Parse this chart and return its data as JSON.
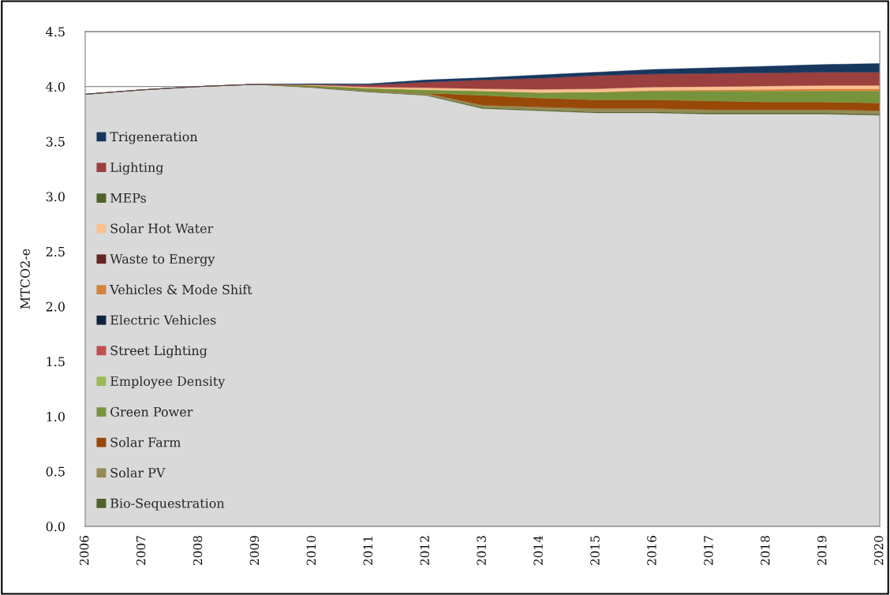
{
  "chart_data": {
    "type": "area",
    "stacked": true,
    "ylabel": "MTCO2-e",
    "x": [
      2006,
      2007,
      2008,
      2009,
      2010,
      2011,
      2012,
      2013,
      2014,
      2015,
      2016,
      2017,
      2018,
      2019,
      2020
    ],
    "xlim": [
      2006,
      2020
    ],
    "xticks": [
      2006,
      2007,
      2008,
      2009,
      2010,
      2011,
      2012,
      2013,
      2014,
      2015,
      2016,
      2017,
      2018,
      2019,
      2020
    ],
    "ylim": [
      0,
      4.5
    ],
    "yticks": [
      {
        "value": 0,
        "label": "0.0"
      },
      {
        "value": 0.5,
        "label": "0.5"
      },
      {
        "value": 1,
        "label": "1.0"
      },
      {
        "value": 1.5,
        "label": "1.5"
      },
      {
        "value": 2,
        "label": "2.0"
      },
      {
        "value": 2.5,
        "label": "2.5"
      },
      {
        "value": 3,
        "label": "3.0"
      },
      {
        "value": 3.5,
        "label": "3.5"
      },
      {
        "value": 4,
        "label": "4.0"
      },
      {
        "value": 4.5,
        "label": "4.5"
      }
    ],
    "grid": "y",
    "legend": "left",
    "series": [
      {
        "color": "#d9d9d9",
        "values": [
          3.93,
          3.97,
          4.0,
          4.02,
          3.99,
          3.95,
          3.92,
          3.8,
          3.78,
          3.76,
          3.76,
          3.75,
          3.75,
          3.75,
          3.74
        ]
      },
      {
        "name": "Bio-Sequestration",
        "color": "#4f6228",
        "values": [
          0,
          0,
          0,
          0,
          0.005,
          0.005,
          0.005,
          0.01,
          0.01,
          0.01,
          0.01,
          0.01,
          0.01,
          0.01,
          0.01
        ]
      },
      {
        "name": "Solar PV",
        "color": "#948a54",
        "values": [
          0,
          0,
          0,
          0,
          0.005,
          0.01,
          0.015,
          0.02,
          0.025,
          0.03,
          0.03,
          0.03,
          0.03,
          0.03,
          0.03
        ]
      },
      {
        "name": "Solar Farm",
        "color": "#984807",
        "values": [
          0,
          0,
          0,
          0,
          0,
          0,
          0,
          0.09,
          0.08,
          0.08,
          0.08,
          0.08,
          0.07,
          0.07,
          0.07
        ]
      },
      {
        "name": "Green Power",
        "color": "#77933c",
        "values": [
          0,
          0,
          0,
          0,
          0.01,
          0.02,
          0.03,
          0.04,
          0.05,
          0.07,
          0.08,
          0.09,
          0.1,
          0.1,
          0.11
        ]
      },
      {
        "name": "Employee Density",
        "color": "#9bbb59",
        "values": [
          null,
          null,
          null,
          null,
          null,
          null,
          null,
          null,
          null,
          null,
          null,
          null,
          null,
          null,
          null
        ]
      },
      {
        "name": "Street Lighting",
        "color": "#c0504d",
        "values": [
          null,
          null,
          null,
          null,
          null,
          null,
          null,
          null,
          null,
          null,
          null,
          null,
          null,
          null,
          null
        ]
      },
      {
        "name": "Electric Vehicles",
        "color": "#10253f",
        "values": [
          null,
          null,
          null,
          null,
          null,
          null,
          null,
          null,
          null,
          null,
          null,
          null,
          null,
          null,
          null
        ]
      },
      {
        "name": "Vehicles & Mode Shift",
        "color": "#d8823c",
        "values": [
          null,
          null,
          null,
          null,
          null,
          null,
          null,
          null,
          null,
          0,
          0.005,
          0.01,
          0.015,
          0.02,
          0.02
        ]
      },
      {
        "name": "Waste to Energy",
        "color": "#632523",
        "values": [
          null,
          null,
          null,
          null,
          null,
          null,
          null,
          null,
          null,
          null,
          null,
          null,
          null,
          null,
          null
        ]
      },
      {
        "name": "Solar Hot Water",
        "color": "#fac090",
        "values": [
          0,
          0,
          0,
          0,
          0.005,
          0.01,
          0.02,
          0.02,
          0.03,
          0.03,
          0.03,
          0.03,
          0.03,
          0.03,
          0.03
        ]
      },
      {
        "name": "MEPs",
        "color": "#4f6228",
        "values": [
          null,
          null,
          null,
          null,
          null,
          null,
          null,
          null,
          null,
          null,
          null,
          null,
          null,
          null,
          null
        ]
      },
      {
        "name": "Lighting",
        "color": "#9b3f3f",
        "values": [
          0,
          0,
          0,
          0,
          0.005,
          0.02,
          0.05,
          0.08,
          0.1,
          0.12,
          0.12,
          0.12,
          0.12,
          0.12,
          0.12
        ]
      },
      {
        "name": "Trigeneration",
        "color": "#17375e",
        "values": [
          0,
          0,
          0,
          0,
          0.005,
          0.01,
          0.02,
          0.02,
          0.03,
          0.03,
          0.04,
          0.05,
          0.06,
          0.07,
          0.08
        ]
      }
    ]
  }
}
